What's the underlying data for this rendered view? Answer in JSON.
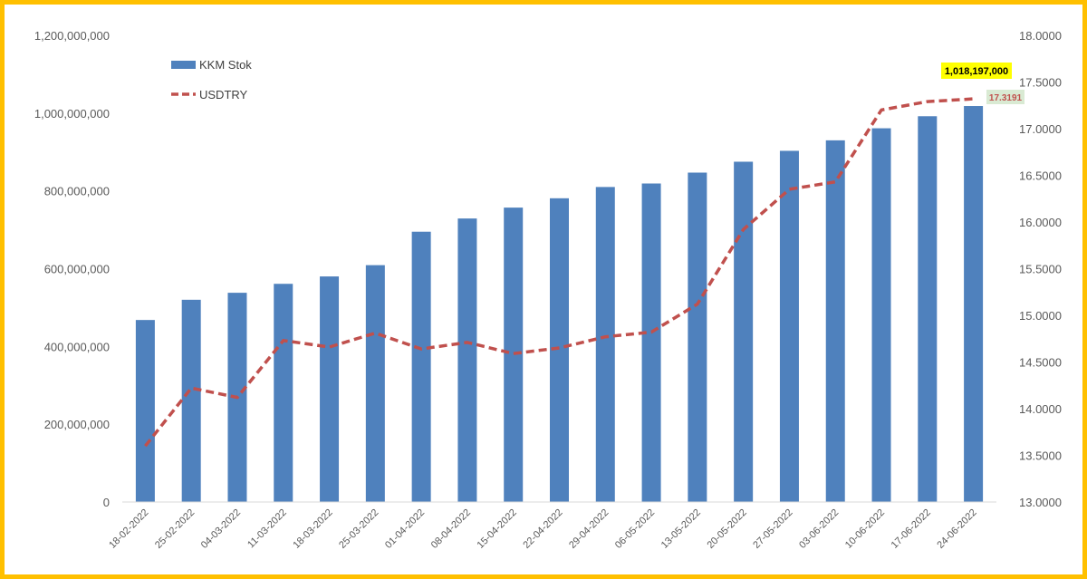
{
  "colors": {
    "bar": "#4f81bd",
    "line": "#c0504d",
    "frame": "#ffc000",
    "callout_bar_bg": "#ffff00",
    "callout_line_bg": "#d9ead3"
  },
  "chart_data": {
    "type": "bar",
    "categories": [
      "18-02-2022",
      "25-02-2022",
      "04-03-2022",
      "11-03-2022",
      "18-03-2022",
      "25-03-2022",
      "01-04-2022",
      "08-04-2022",
      "15-04-2022",
      "22-04-2022",
      "29-04-2022",
      "06-05-2022",
      "13-05-2022",
      "20-05-2022",
      "27-05-2022",
      "03-06-2022",
      "10-06-2022",
      "17-06-2022",
      "24-06-2022"
    ],
    "series": [
      {
        "name": "KKM Stok",
        "type": "bar",
        "axis": "left",
        "values": [
          468000000,
          520000000,
          538000000,
          561000000,
          580000000,
          609000000,
          695000000,
          729000000,
          757000000,
          781000000,
          810000000,
          819000000,
          847000000,
          875000000,
          903000000,
          930000000,
          961000000,
          992000000,
          1018197000
        ]
      },
      {
        "name": "USDTRY",
        "type": "line",
        "style": "dashed",
        "axis": "right",
        "values": [
          13.6,
          14.22,
          14.12,
          14.73,
          14.66,
          14.81,
          14.64,
          14.71,
          14.59,
          14.65,
          14.77,
          14.82,
          15.12,
          15.92,
          16.35,
          16.43,
          17.2,
          17.29,
          17.3191
        ]
      }
    ],
    "yleft": {
      "lim": [
        0,
        1200000000
      ],
      "ticks": [
        "0",
        "200,000,000",
        "400,000,000",
        "600,000,000",
        "800,000,000",
        "1,000,000,000",
        "1,200,000,000"
      ]
    },
    "yright": {
      "lim": [
        13.0,
        18.0
      ],
      "ticks": [
        "13.0000",
        "13.5000",
        "14.0000",
        "14.5000",
        "15.0000",
        "15.5000",
        "16.0000",
        "16.5000",
        "17.0000",
        "17.5000",
        "18.0000"
      ]
    },
    "annotations": {
      "bar_last": "1,018,197,000",
      "line_last": "17.3191"
    },
    "legend": {
      "placement": "top-left"
    },
    "grid": false
  }
}
